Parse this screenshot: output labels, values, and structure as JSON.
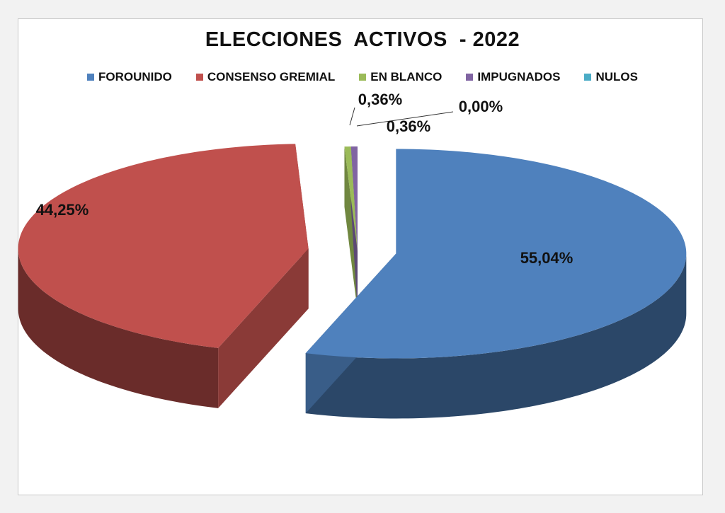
{
  "chart_data": {
    "type": "pie",
    "title": "ELECCIONES  ACTIVOS  - 2022",
    "categories": [
      "FOROUNIDO",
      "CONSENSO GREMIAL",
      "EN BLANCO",
      "IMPUGNADOS",
      "NULOS"
    ],
    "values": [
      55.04,
      44.25,
      0.36,
      0.36,
      0.0
    ],
    "data_labels": [
      "55,04%",
      "44,25%",
      "0,36%",
      "0,36%",
      "0,00%"
    ],
    "colors": [
      "#4f81bd",
      "#c0504d",
      "#9bbb59",
      "#8064a2",
      "#4bacc6"
    ],
    "style": "3d-exploded",
    "legend_position": "top"
  }
}
